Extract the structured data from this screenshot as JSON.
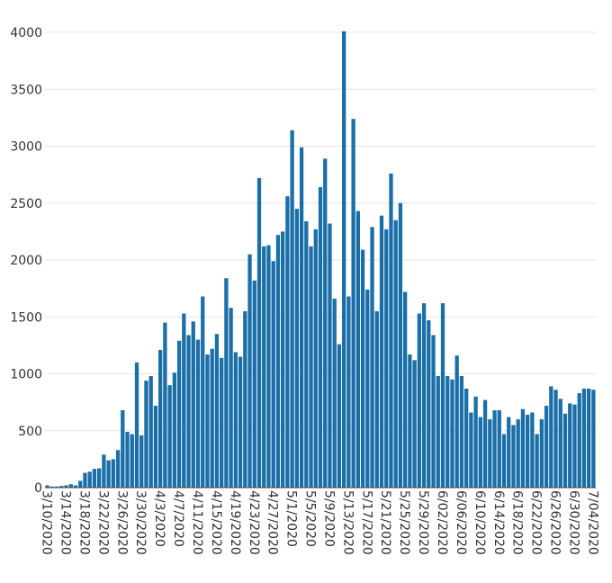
{
  "chart_data": {
    "type": "bar",
    "title": "",
    "xlabel": "",
    "ylabel": "",
    "ylim": [
      0,
      4000
    ],
    "yticks": [
      0,
      500,
      1000,
      1500,
      2000,
      2500,
      3000,
      3500,
      4000
    ],
    "grid": true,
    "bar_color": "#1a6fa8",
    "x_tick_labels": [
      "3/10/2020",
      "3/14/2020",
      "3/18/2020",
      "3/22/2020",
      "3/26/2020",
      "3/30/2020",
      "4/3/2020",
      "4/7/2020",
      "4/11/2020",
      "4/15/2020",
      "4/19/2020",
      "4/23/2020",
      "4/27/2020",
      "5/1/2020",
      "5/5/2020",
      "5/9/2020",
      "5/13/2020",
      "5/17/2020",
      "5/21/2020",
      "5/25/2020",
      "5/29/2020",
      "6/02/2020",
      "6/06/2020",
      "6/10/2020",
      "6/14/2020",
      "6/18/2020",
      "6/22/2020",
      "6/26/2020",
      "6/30/2020",
      "7/04/2020"
    ],
    "start_date": "3/10/2020",
    "values": [
      20,
      10,
      10,
      15,
      20,
      30,
      20,
      60,
      130,
      140,
      165,
      170,
      290,
      240,
      250,
      330,
      680,
      490,
      470,
      1100,
      460,
      940,
      980,
      720,
      1210,
      1450,
      900,
      1010,
      1290,
      1530,
      1340,
      1460,
      1300,
      1680,
      1170,
      1220,
      1350,
      1140,
      1840,
      1580,
      1190,
      1150,
      1550,
      2050,
      1820,
      2720,
      2120,
      2130,
      1990,
      2220,
      2250,
      2560,
      3140,
      2450,
      2990,
      2340,
      2120,
      2270,
      2640,
      2890,
      2320,
      1660,
      1260,
      4010,
      1680,
      3240,
      2430,
      2090,
      1740,
      2290,
      1550,
      2390,
      2270,
      2760,
      2350,
      2500,
      1720,
      1170,
      1120,
      1530,
      1620,
      1470,
      1340,
      980,
      1620,
      980,
      950,
      1160,
      980,
      870,
      660,
      800,
      620,
      770,
      600,
      680,
      680,
      470,
      620,
      550,
      600,
      690,
      640,
      660,
      470,
      600,
      720,
      890,
      860,
      780,
      650,
      740,
      730,
      830,
      870,
      870,
      860
    ]
  }
}
